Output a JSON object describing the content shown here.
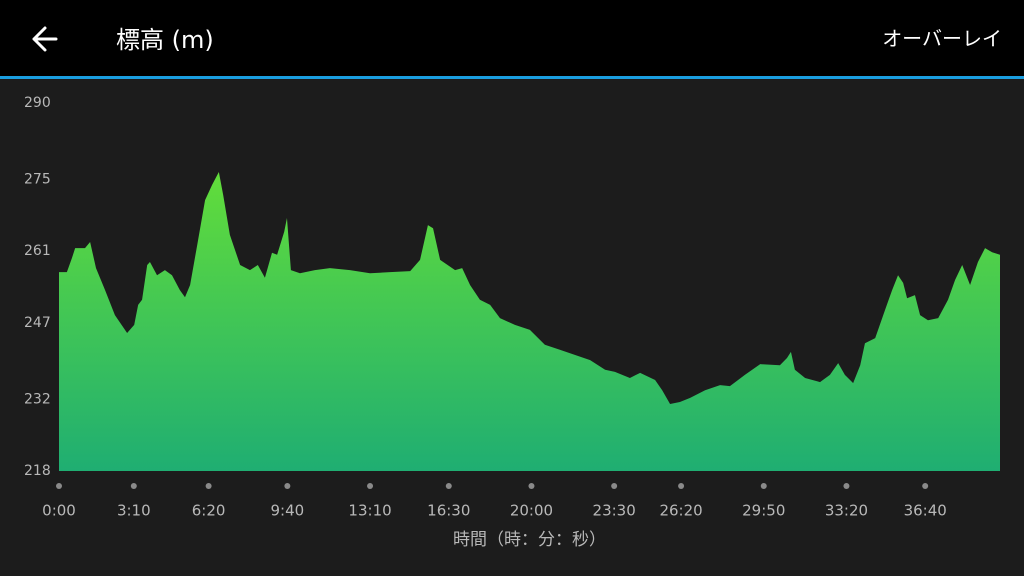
{
  "header": {
    "title": "標高 (m)",
    "action": "オーバーレイ"
  },
  "chart_data": {
    "type": "area",
    "x_label": "時間（時：分：秒）",
    "color": "#62dd3a",
    "color_bottom": "#1fae72",
    "xlim": [
      0,
      2390
    ],
    "xticks": [
      {
        "value": 0,
        "label": "0:00"
      },
      {
        "value": 190,
        "label": "3:10"
      },
      {
        "value": 380,
        "label": "6:20"
      },
      {
        "value": 580,
        "label": "9:40"
      },
      {
        "value": 790,
        "label": "13:10"
      },
      {
        "value": 990,
        "label": "16:30"
      },
      {
        "value": 1200,
        "label": "20:00"
      },
      {
        "value": 1410,
        "label": "23:30"
      },
      {
        "value": 1580,
        "label": "26:20"
      },
      {
        "value": 1790,
        "label": "29:50"
      },
      {
        "value": 2000,
        "label": "33:20"
      },
      {
        "value": 2200,
        "label": "36:40"
      }
    ],
    "ylim": [
      218,
      290
    ],
    "yticks": [
      218,
      232,
      247,
      261,
      275,
      290
    ],
    "grid": false,
    "x": [
      0,
      20,
      33,
      41,
      66,
      79,
      94,
      117,
      142,
      173,
      191,
      201,
      211,
      224,
      231,
      249,
      269,
      287,
      307,
      320,
      333,
      351,
      371,
      389,
      406,
      417,
      434,
      460,
      485,
      505,
      523,
      541,
      554,
      572,
      579,
      589,
      612,
      650,
      688,
      739,
      790,
      841,
      892,
      917,
      937,
      950,
      968,
      1006,
      1024,
      1044,
      1069,
      1095,
      1120,
      1158,
      1196,
      1234,
      1273,
      1311,
      1349,
      1387,
      1412,
      1450,
      1476,
      1514,
      1532,
      1552,
      1577,
      1603,
      1641,
      1679,
      1704,
      1742,
      1781,
      1831,
      1849,
      1859,
      1869,
      1895,
      1933,
      1958,
      1979,
      1996,
      2017,
      2035,
      2047,
      2073,
      2098,
      2116,
      2131,
      2144,
      2154,
      2174,
      2187,
      2207,
      2233,
      2258,
      2276,
      2294,
      2314,
      2334,
      2352,
      2370,
      2390
    ],
    "values": [
      256.9,
      256.9,
      259.7,
      261.6,
      261.6,
      262.8,
      257.7,
      253.4,
      248.5,
      245.0,
      246.6,
      250.5,
      251.5,
      258.3,
      258.9,
      256.3,
      257.3,
      256.3,
      253.4,
      252.0,
      254.4,
      262.2,
      271.0,
      274.0,
      276.5,
      272.0,
      264.2,
      258.3,
      257.3,
      258.3,
      255.8,
      260.7,
      260.3,
      264.8,
      267.5,
      257.3,
      256.7,
      257.3,
      257.7,
      257.3,
      256.7,
      256.9,
      257.1,
      259.3,
      266.1,
      265.5,
      259.3,
      257.3,
      257.7,
      254.4,
      251.5,
      250.5,
      247.9,
      246.6,
      245.6,
      242.7,
      241.7,
      240.7,
      239.7,
      237.8,
      237.4,
      236.2,
      237.2,
      235.8,
      233.8,
      231.1,
      231.5,
      232.3,
      233.8,
      234.8,
      234.6,
      236.8,
      238.9,
      238.7,
      240.1,
      241.3,
      237.8,
      236.2,
      235.4,
      236.8,
      239.1,
      236.8,
      235.2,
      238.7,
      243.0,
      244.0,
      249.5,
      253.4,
      256.3,
      254.8,
      251.8,
      252.4,
      248.5,
      247.5,
      247.9,
      251.5,
      255.4,
      258.3,
      254.4,
      258.9,
      261.6,
      260.8,
      260.3
    ]
  }
}
